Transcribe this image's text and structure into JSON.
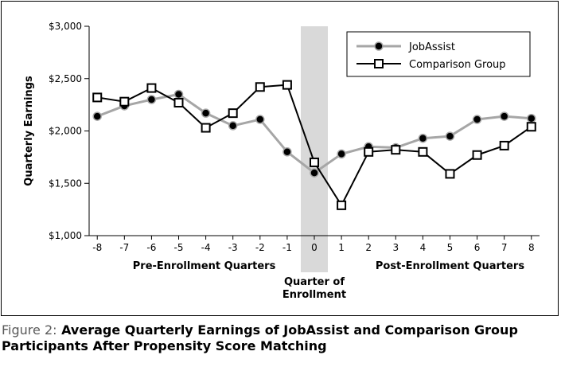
{
  "caption": {
    "label": "Figure 2:",
    "text": "Average Quarterly Earnings of JobAssist and Comparison Group Participants After Propensity Score Matching"
  },
  "chart_data": {
    "type": "line",
    "ylabel": "Quarterly Earnings",
    "ylim": [
      1000,
      3000
    ],
    "yticks": [
      1000,
      1500,
      2000,
      2500,
      3000
    ],
    "ytick_labels": [
      "$1,000",
      "$1,500",
      "$2,000",
      "$2,500",
      "$3,000"
    ],
    "x": [
      -8,
      -7,
      -6,
      -5,
      -4,
      -3,
      -2,
      -1,
      0,
      1,
      2,
      3,
      4,
      5,
      6,
      7,
      8
    ],
    "xtick_labels": [
      "-8",
      "-7",
      "-6",
      "-5",
      "-4",
      "-3",
      "-2",
      "-1",
      "0",
      "1",
      "2",
      "3",
      "4",
      "5",
      "6",
      "7",
      "8"
    ],
    "x_group_labels": {
      "pre": "Pre-Enrollment Quarters",
      "post": "Post-Enrollment Quarters",
      "enroll_line1": "Quarter of",
      "enroll_line2": "Enrollment"
    },
    "highlight_x": 0,
    "legend_position": "top-right",
    "series": [
      {
        "name": "JobAssist",
        "color": "#a6a6a6",
        "marker": "filled-circle",
        "values": [
          2140,
          2240,
          2300,
          2350,
          2170,
          2050,
          2110,
          1800,
          1600,
          1780,
          1850,
          1840,
          1930,
          1950,
          2110,
          2140,
          2120
        ]
      },
      {
        "name": "Comparison Group",
        "color": "#000000",
        "marker": "open-square",
        "values": [
          2320,
          2280,
          2410,
          2270,
          2030,
          2170,
          2420,
          2440,
          1700,
          1290,
          1800,
          1820,
          1800,
          1590,
          1770,
          1860,
          2040
        ]
      }
    ]
  }
}
